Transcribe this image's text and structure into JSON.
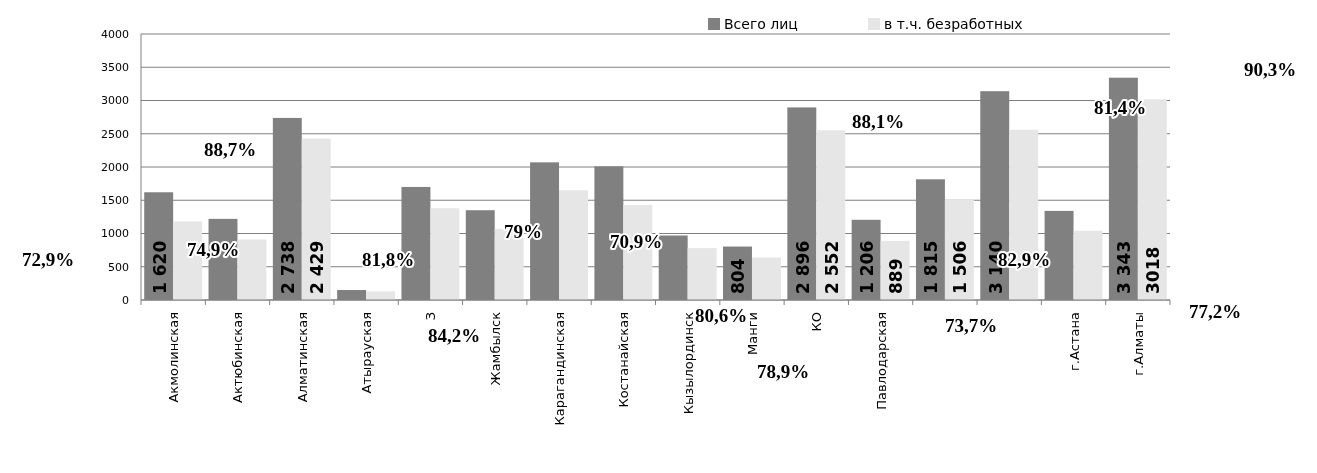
{
  "chart_data": {
    "type": "bar",
    "categories": [
      "Акмолинская",
      "Актюбинская",
      "Алматинская",
      "Атырауская",
      "З",
      "Жамбылск",
      "Карагандинская",
      "Костанайская",
      "Кызылординск",
      "Манги",
      "КО",
      "Павлодарская",
      null,
      null,
      "г.Астана",
      "г.Алматы"
    ],
    "series": [
      {
        "name": "Всего лиц",
        "color": "#808080",
        "values": [
          1620,
          1220,
          2738,
          150,
          1700,
          1350,
          2070,
          2010,
          970,
          804,
          2896,
          1206,
          1815,
          3140,
          1340,
          3343
        ],
        "value_labels": [
          "1 620",
          null,
          "2 738",
          null,
          null,
          null,
          null,
          null,
          null,
          "804",
          "2 896",
          "1 206",
          "1 815",
          "3 140",
          null,
          "3 343"
        ]
      },
      {
        "name": "в т.ч. безработных",
        "color": "#e6e6e6",
        "values": [
          1180,
          910,
          2429,
          130,
          1380,
          1070,
          1650,
          1430,
          780,
          640,
          2552,
          889,
          1506,
          2560,
          1040,
          3018
        ],
        "value_labels": [
          null,
          null,
          "2 429",
          null,
          null,
          null,
          null,
          null,
          null,
          null,
          "2 552",
          "889",
          "1 506",
          null,
          null,
          "3018"
        ]
      }
    ],
    "ylim": [
      0,
      4000
    ],
    "yticks": [
      0,
      500,
      1000,
      1500,
      2000,
      2500,
      3000,
      3500,
      4000
    ],
    "grid": "y",
    "legend": "top",
    "annotations": [
      "72,9%",
      "74,9%",
      "88,7%",
      "81,8%",
      "84,2%",
      "79%",
      "70,9%",
      "80,6%",
      "78,9%",
      "88,1%",
      "73,7%",
      "82,9%",
      "81,4%",
      "90,3%",
      "77,2%"
    ]
  }
}
